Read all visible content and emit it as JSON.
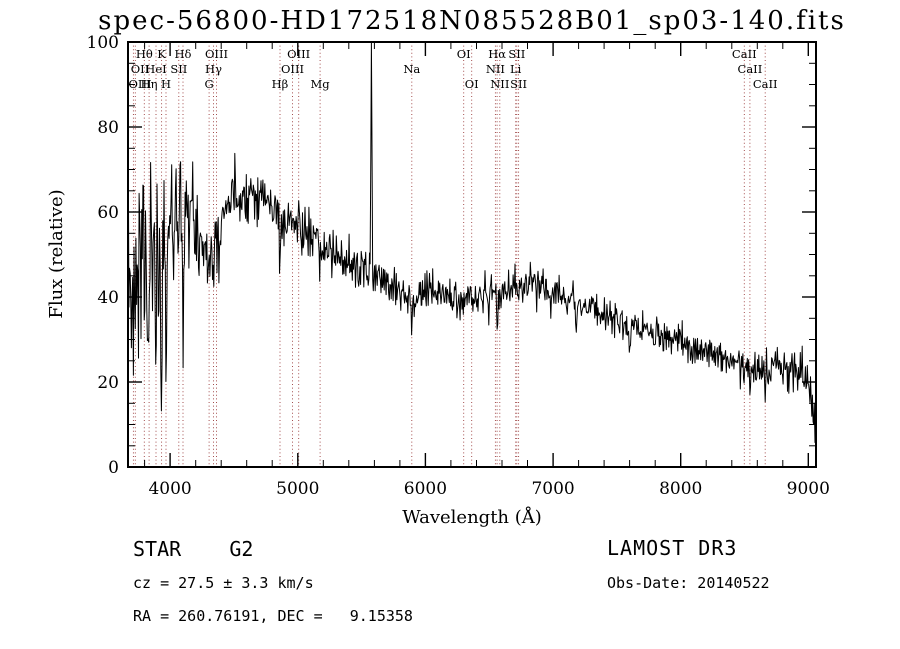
{
  "title": "spec-56800-HD172518N085528B01_sp03-140.fits",
  "footer": {
    "class_line": "STAR    G2",
    "cz_line": "cz = 27.5 ± 3.3 km/s",
    "radec_line": "RA = 260.76191, DEC =   9.15358",
    "survey": "LAMOST DR3",
    "obs_date_line": "Obs-Date: 20140522"
  },
  "chart_data": {
    "type": "line",
    "title": "spec-56800-HD172518N085528B01_sp03-140.fits",
    "xlabel": "Wavelength (Å)",
    "ylabel": "Flux (relative)",
    "xlim": [
      3670,
      9060
    ],
    "ylim": [
      0,
      100
    ],
    "xticks": [
      4000,
      5000,
      6000,
      7000,
      8000,
      9000
    ],
    "yticks": [
      0,
      20,
      40,
      60,
      80,
      100
    ],
    "grid": false,
    "legend": false,
    "line_color": "#000000",
    "marker_color": "#9a3b3b",
    "continuum": [
      [
        3690,
        46
      ],
      [
        3720,
        52
      ],
      [
        3760,
        54
      ],
      [
        3800,
        56
      ],
      [
        3850,
        55
      ],
      [
        3900,
        54
      ],
      [
        3950,
        58
      ],
      [
        4000,
        60
      ],
      [
        4060,
        61
      ],
      [
        4120,
        62
      ],
      [
        4180,
        60
      ],
      [
        4240,
        56
      ],
      [
        4300,
        52
      ],
      [
        4360,
        57
      ],
      [
        4420,
        61
      ],
      [
        4480,
        63
      ],
      [
        4560,
        64
      ],
      [
        4650,
        65
      ],
      [
        4720,
        64
      ],
      [
        4800,
        61
      ],
      [
        4900,
        58
      ],
      [
        5000,
        57
      ],
      [
        5100,
        54
      ],
      [
        5200,
        52
      ],
      [
        5300,
        50
      ],
      [
        5400,
        48
      ],
      [
        5500,
        46
      ],
      [
        5600,
        45
      ],
      [
        5700,
        44
      ],
      [
        5800,
        42
      ],
      [
        5900,
        40
      ],
      [
        6000,
        41
      ],
      [
        6100,
        41
      ],
      [
        6200,
        40
      ],
      [
        6300,
        39
      ],
      [
        6400,
        40
      ],
      [
        6500,
        41
      ],
      [
        6600,
        41
      ],
      [
        6700,
        42
      ],
      [
        6800,
        43
      ],
      [
        6900,
        43
      ],
      [
        7000,
        42
      ],
      [
        7100,
        40
      ],
      [
        7200,
        39
      ],
      [
        7300,
        37
      ],
      [
        7400,
        36
      ],
      [
        7500,
        35
      ],
      [
        7600,
        33
      ],
      [
        7700,
        32
      ],
      [
        7800,
        31
      ],
      [
        7900,
        30
      ],
      [
        8000,
        29
      ],
      [
        8100,
        28
      ],
      [
        8200,
        27
      ],
      [
        8300,
        26
      ],
      [
        8400,
        25
      ],
      [
        8500,
        25
      ],
      [
        8600,
        24
      ],
      [
        8700,
        23
      ],
      [
        8800,
        23
      ],
      [
        8900,
        22
      ],
      [
        8960,
        21
      ],
      [
        9000,
        20
      ],
      [
        9025,
        16
      ],
      [
        9045,
        11
      ],
      [
        9060,
        10
      ]
    ],
    "noise_sigma": [
      [
        3690,
        10
      ],
      [
        3800,
        9
      ],
      [
        3900,
        8
      ],
      [
        4000,
        6.5
      ],
      [
        4150,
        5
      ],
      [
        4300,
        4
      ],
      [
        4500,
        3.2
      ],
      [
        4800,
        3
      ],
      [
        5200,
        2.8
      ],
      [
        5600,
        2.5
      ],
      [
        6000,
        2.3
      ],
      [
        6500,
        2
      ],
      [
        7000,
        2
      ],
      [
        7600,
        1.8
      ],
      [
        8200,
        1.9
      ],
      [
        8600,
        2.2
      ],
      [
        9000,
        2.6
      ],
      [
        9060,
        3
      ]
    ],
    "absorption_lines": [
      [
        3700,
        32,
        2.5
      ],
      [
        3712,
        24,
        3
      ],
      [
        3727,
        18,
        3
      ],
      [
        3750,
        30,
        3
      ],
      [
        3770,
        26,
        3
      ],
      [
        3798,
        28,
        4
      ],
      [
        3820,
        20,
        3
      ],
      [
        3835,
        32,
        4
      ],
      [
        3860,
        18,
        3
      ],
      [
        3889,
        34,
        4
      ],
      [
        3910,
        14,
        3
      ],
      [
        3933,
        44,
        5
      ],
      [
        3968,
        40,
        5
      ],
      [
        4026,
        12,
        3
      ],
      [
        4068,
        10,
        3
      ],
      [
        4101,
        30,
        5
      ],
      [
        4144,
        10,
        3
      ],
      [
        4226,
        14,
        4
      ],
      [
        4305,
        8,
        7
      ],
      [
        4340,
        14,
        5
      ],
      [
        4383,
        10,
        4
      ],
      [
        4861,
        11,
        6
      ],
      [
        5175,
        9,
        7
      ],
      [
        5269,
        5,
        4
      ],
      [
        5890,
        9,
        6
      ],
      [
        6494,
        4,
        4
      ],
      [
        6563,
        9,
        5
      ],
      [
        6870,
        5,
        4
      ],
      [
        7180,
        4,
        8
      ],
      [
        7600,
        6,
        10
      ],
      [
        8498,
        5,
        4
      ],
      [
        8542,
        6,
        4
      ],
      [
        8662,
        6,
        4
      ]
    ],
    "emission_lines": [
      [
        3790,
        26,
        2.2
      ],
      [
        5577,
        80,
        3.5
      ]
    ],
    "markers": [
      [
        3712,
        "OIII",
        2
      ],
      [
        3727,
        "OII",
        1
      ],
      [
        3798,
        "Hθ",
        0
      ],
      [
        3835,
        "Hη",
        2
      ],
      [
        3889,
        "HeI",
        1
      ],
      [
        3933,
        "K",
        0
      ],
      [
        3968,
        "H",
        2
      ],
      [
        4068,
        "SII",
        1
      ],
      [
        4101,
        "Hδ",
        0
      ],
      [
        4305,
        "G",
        2
      ],
      [
        4340,
        "Hγ",
        1
      ],
      [
        4363,
        "OIII",
        0
      ],
      [
        4861,
        "Hβ",
        2
      ],
      [
        4959,
        "OIII",
        1
      ],
      [
        5007,
        "OIII",
        0
      ],
      [
        5175,
        "Mg",
        2
      ],
      [
        5893,
        "Na",
        1
      ],
      [
        6300,
        "OI",
        0
      ],
      [
        6363,
        "OI",
        2
      ],
      [
        6548,
        "NII",
        1
      ],
      [
        6562,
        "Hα",
        0
      ],
      [
        6583,
        "NII",
        2
      ],
      [
        6707,
        "Li",
        1
      ],
      [
        6716,
        "SII",
        0
      ],
      [
        6730,
        "SII",
        2
      ],
      [
        8498,
        "CaII",
        0
      ],
      [
        8542,
        "CaII",
        1
      ],
      [
        8662,
        "CaII",
        2
      ]
    ]
  }
}
